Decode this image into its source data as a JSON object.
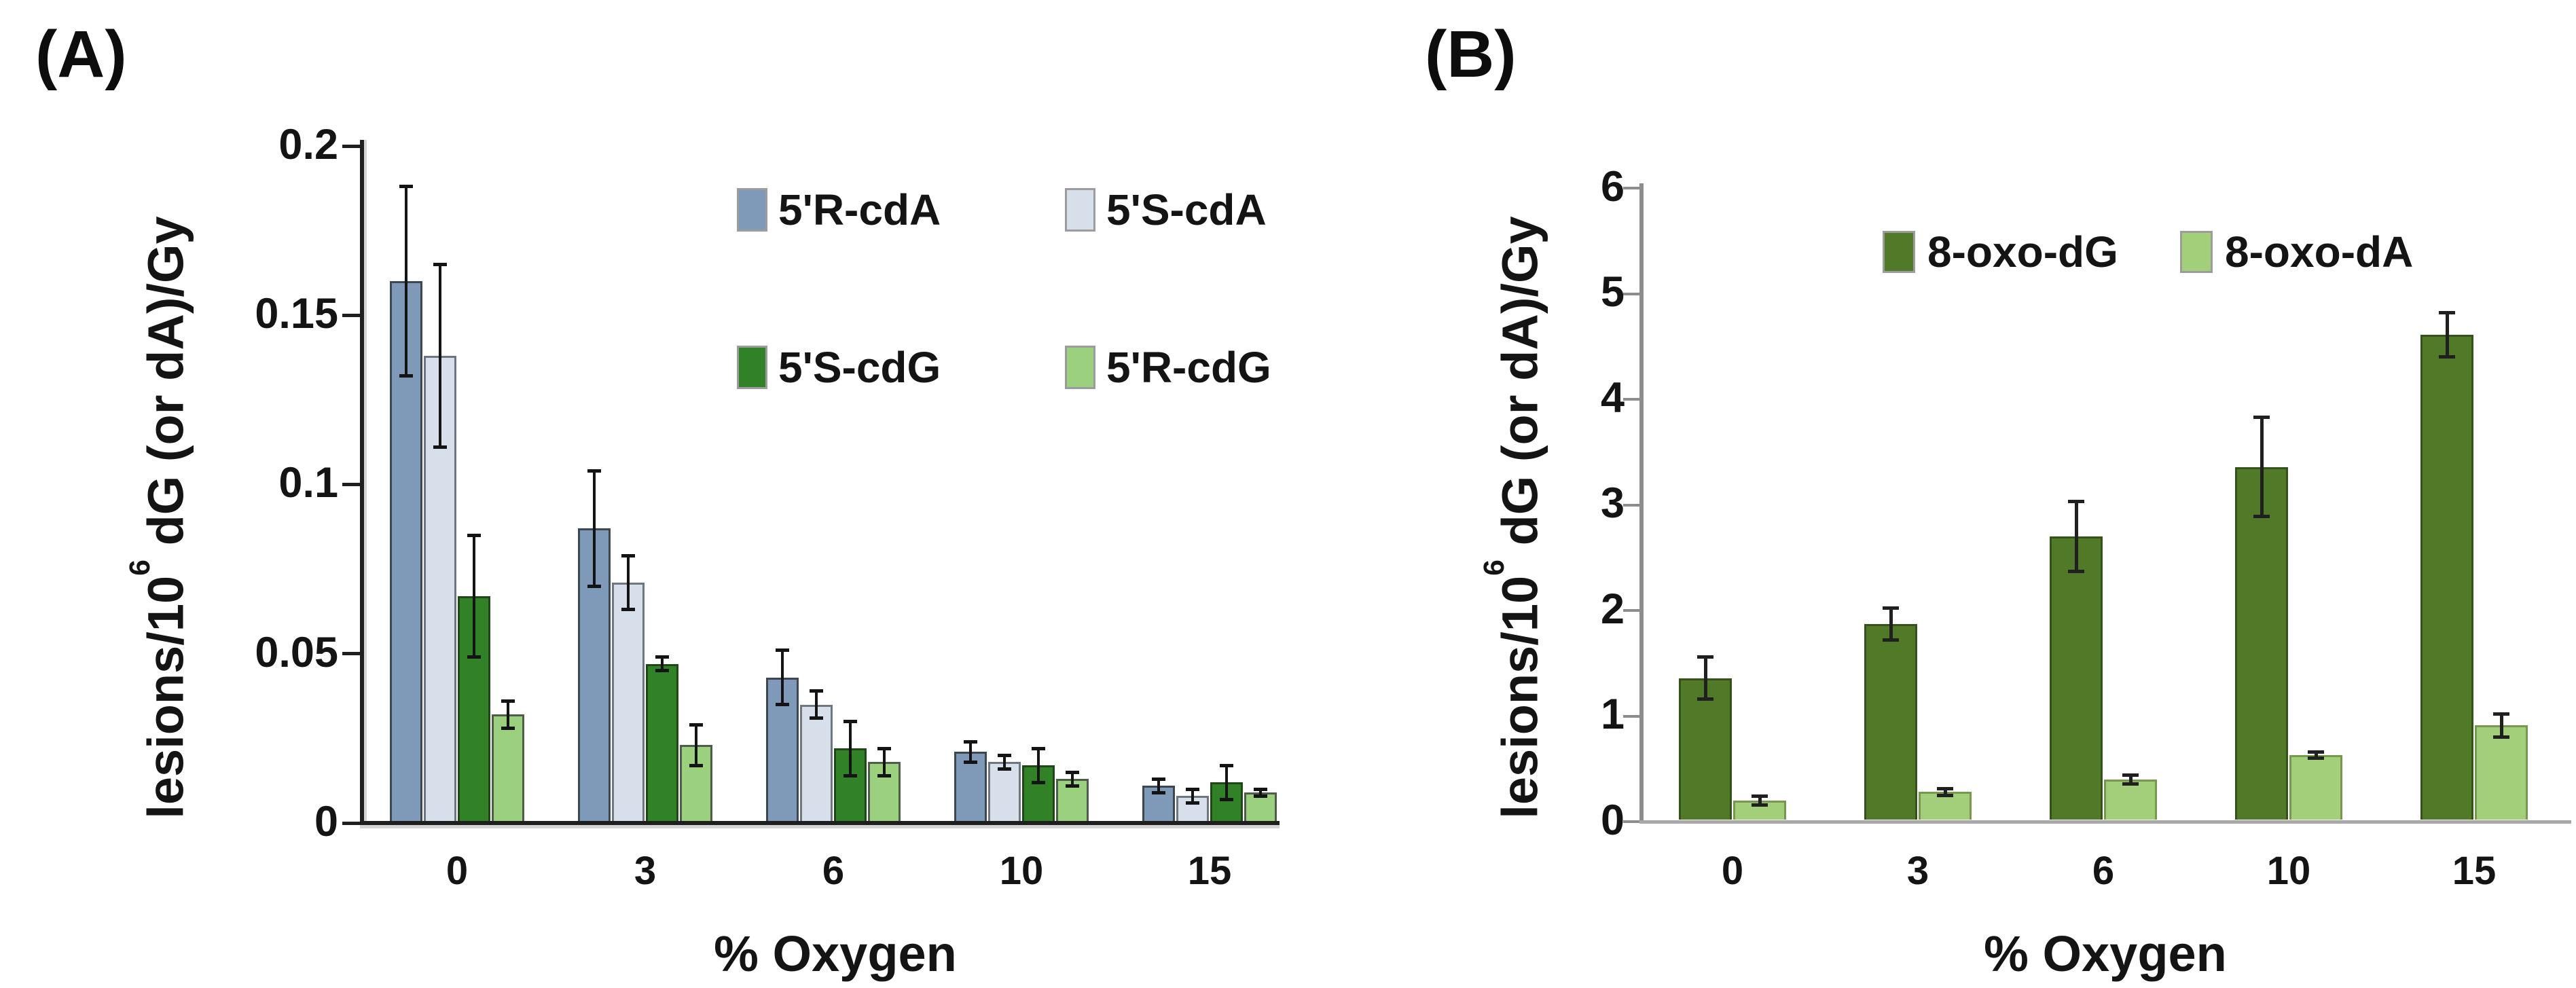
{
  "figure_background": "#ffffff",
  "chart_data": [
    {
      "type": "bar",
      "panel_label": "(A)",
      "xlabel": "% Oxygen",
      "ylabel": {
        "prefix": "lesions/10",
        "superscript": "6",
        "suffix": " dG (or dA)/Gy"
      },
      "categories": [
        "0",
        "3",
        "6",
        "10",
        "15"
      ],
      "ylim": [
        0,
        0.2
      ],
      "yticks": [
        "0",
        "0.05",
        "0.1",
        "0.15",
        "0.2"
      ],
      "grid": false,
      "legend_position": "upper-right-inset-2x2",
      "series": [
        {
          "name": "5'R-cdA",
          "color": "#7e9ab8",
          "border": "#3d4750",
          "values": [
            0.16,
            0.087,
            0.043,
            0.021,
            0.011
          ],
          "errors": [
            0.028,
            0.017,
            0.008,
            0.003,
            0.002
          ]
        },
        {
          "name": "5'S-cdA",
          "color": "#d7e0ea",
          "border": "#6e7780",
          "values": [
            0.138,
            0.071,
            0.035,
            0.018,
            0.008
          ],
          "errors": [
            0.027,
            0.008,
            0.004,
            0.002,
            0.002
          ]
        },
        {
          "name": "5'S-cdG",
          "color": "#318227",
          "border": "#20461a",
          "values": [
            0.067,
            0.047,
            0.022,
            0.017,
            0.012
          ],
          "errors": [
            0.018,
            0.002,
            0.008,
            0.005,
            0.005
          ]
        },
        {
          "name": "5'R-cdG",
          "color": "#9ad07e",
          "border": "#4e5c49",
          "values": [
            0.032,
            0.023,
            0.018,
            0.013,
            0.009
          ],
          "errors": [
            0.004,
            0.006,
            0.004,
            0.002,
            0.001
          ]
        }
      ]
    },
    {
      "type": "bar",
      "panel_label": "(B)",
      "xlabel": "% Oxygen",
      "ylabel": {
        "prefix": "lesions/10",
        "superscript": "6",
        "suffix": " dG (or dA)/Gy"
      },
      "categories": [
        "0",
        "3",
        "6",
        "10",
        "15"
      ],
      "ylim": [
        0,
        6
      ],
      "yticks": [
        "0",
        "1",
        "2",
        "3",
        "4",
        "5",
        "6"
      ],
      "grid": false,
      "legend_position": "top-inset-row",
      "series": [
        {
          "name": "8-oxo-dG",
          "color": "#507a28",
          "border": "#35521b",
          "values": [
            1.36,
            1.87,
            2.7,
            3.36,
            4.61
          ],
          "errors": [
            0.2,
            0.15,
            0.33,
            0.47,
            0.21
          ]
        },
        {
          "name": "8-oxo-dA",
          "color": "#a3cf7a",
          "border": "#76994f",
          "values": [
            0.2,
            0.28,
            0.4,
            0.63,
            0.91
          ],
          "errors": [
            0.04,
            0.03,
            0.04,
            0.03,
            0.11
          ]
        }
      ]
    }
  ]
}
